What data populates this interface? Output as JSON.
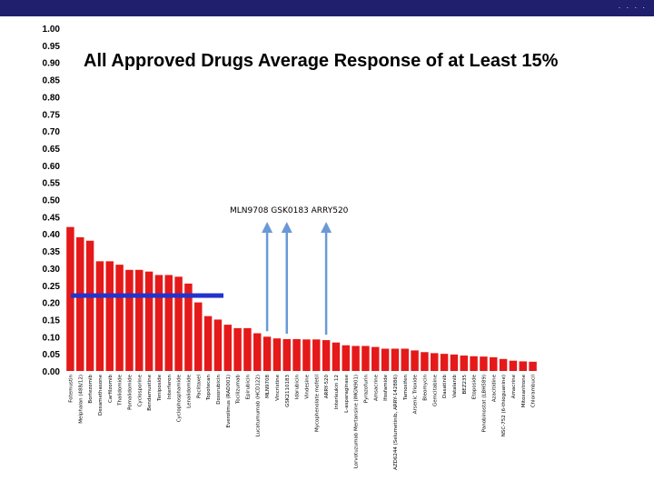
{
  "chart_data": {
    "type": "bar",
    "title": "All Approved Drugs Average Response of at Least 15%",
    "annotation": "MLN9708  GSK0183  ARRY520",
    "ylim": [
      0,
      1.0
    ],
    "y_ticks": [
      "0.00",
      "0.05",
      "0.10",
      "0.15",
      "0.20",
      "0.25",
      "0.30",
      "0.35",
      "0.40",
      "0.45",
      "0.50",
      "0.55",
      "0.60",
      "0.65",
      "0.70",
      "0.75",
      "0.80",
      "0.85",
      "0.90",
      "0.95",
      "1.00"
    ],
    "threshold": 0.22,
    "categories": [
      "Fotemustin",
      "Melphalan (488/12)",
      "Bortezomib",
      "Dexamethasone",
      "Carfilzomib",
      "Thalidomide",
      "Pomalidomide",
      "Cyclosporine",
      "Bendamustine",
      "Teniposide",
      "Interferon",
      "Cyclophosphamide",
      "Lenalidomide",
      "Paclitaxel",
      "Topotecan",
      "Doxorubicin",
      "Everolimus (RAD001)",
      "Tocilizumab",
      "Epirubicin",
      "Lucatumumab (HCD122)",
      "MLN9708",
      "Vincristine",
      "GSK2110183",
      "Idarubicin",
      "Vindesine",
      "Mycophenolate mofetil",
      "ARRY-520",
      "Interleukin 12",
      "L-asparaginase",
      "Lorvotuzumab Mertansine (IMGN901)",
      "Pyrazofurin",
      "Amsacrine",
      "Ifosfamide",
      "AZD6244 (Selumetinib, ARRY-142886)",
      "Tamoxifen",
      "Arsenic Trioxide",
      "Bleomycin",
      "Gemcitabine",
      "Dasatinib",
      "Vatalanib",
      "BEZ235",
      "Etoposide",
      "Panobinostat (LBH589)",
      "Azacitidine",
      "NSC-752 (6-thioguanine)",
      "Amacrine",
      "Mitoxantrone",
      "Chlorambucil"
    ],
    "values": [
      0.42,
      0.39,
      0.38,
      0.32,
      0.32,
      0.31,
      0.295,
      0.295,
      0.29,
      0.28,
      0.28,
      0.275,
      0.255,
      0.2,
      0.16,
      0.15,
      0.135,
      0.125,
      0.125,
      0.11,
      0.1,
      0.095,
      0.093,
      0.093,
      0.092,
      0.092,
      0.09,
      0.083,
      0.075,
      0.073,
      0.073,
      0.07,
      0.065,
      0.065,
      0.065,
      0.06,
      0.055,
      0.052,
      0.05,
      0.048,
      0.045,
      0.043,
      0.042,
      0.04,
      0.035,
      0.03,
      0.028,
      0.027
    ],
    "bar_color": "#e51919",
    "threshold_color": "#2233cc",
    "arrow_color": "#6a9ad6",
    "arrow_targets": [
      "MLN9708",
      "GSK2110183",
      "ARRY-520"
    ],
    "grid": false,
    "legend": "none"
  },
  "colors": {
    "header": "#1f1f6e"
  }
}
